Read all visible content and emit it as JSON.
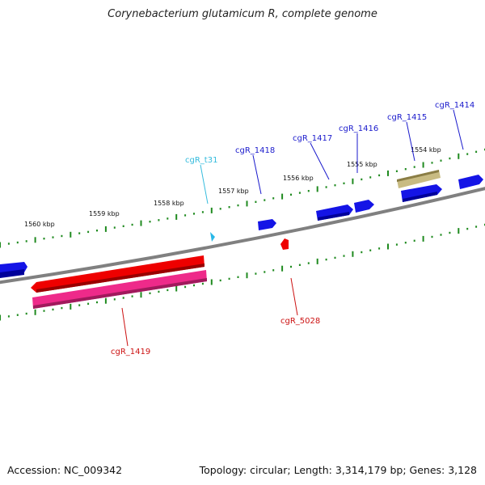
{
  "title": "Corynebacterium glutamicum R, complete genome",
  "footer": {
    "accession": "Accession: NC_009342",
    "summary": "Topology: circular; Length: 3,314,179 bp; Genes: 3,128"
  },
  "kbp_labels": [
    "1560 kbp",
    "1559 kbp",
    "1558 kbp",
    "1557 kbp",
    "1556 kbp",
    "1555 kbp",
    "1554 kbp"
  ],
  "genes": [
    {
      "name": "cgR_t31",
      "color": "#33bbdd"
    },
    {
      "name": "cgR_1418",
      "color": "#1a1acc"
    },
    {
      "name": "cgR_1417",
      "color": "#1a1acc"
    },
    {
      "name": "cgR_1416",
      "color": "#1a1acc"
    },
    {
      "name": "cgR_1415",
      "color": "#1a1acc"
    },
    {
      "name": "cgR_1414",
      "color": "#1a1acc"
    },
    {
      "name": "cgR_5028",
      "color": "#cc1111"
    },
    {
      "name": "cgR_1419",
      "color": "#cc1111"
    }
  ],
  "colors": {
    "backbone": "#808080",
    "tick": "#1f8a1f",
    "forward_cds": "#1414e6",
    "reverse_cds": "#ee0000",
    "reverse_cds_alt": "#ee2a8a",
    "rna": "#28b8e8",
    "other": "#c8bb82"
  }
}
